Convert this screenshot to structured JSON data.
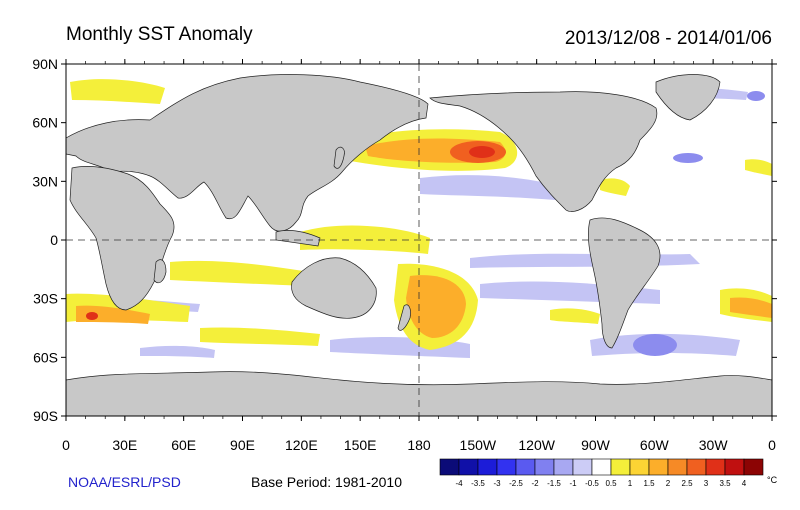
{
  "header": {
    "title": "Monthly SST Anomaly",
    "date_range": "2013/12/08 - 2014/01/06"
  },
  "map": {
    "lat_labels": [
      "90N",
      "60N",
      "30N",
      "0",
      "30S",
      "60S",
      "90S"
    ],
    "lon_labels": [
      "0",
      "30E",
      "60E",
      "90E",
      "120E",
      "150E",
      "180",
      "150W",
      "120W",
      "90W",
      "60W",
      "30W",
      "0"
    ],
    "colors": {
      "land": "#c8c8c8",
      "ocean": "#ffffff"
    }
  },
  "footer": {
    "credit": "NOAA/ESRL/PSD",
    "base_period": "Base Period: 1981-2010"
  },
  "legend": {
    "unit": "°C",
    "labels": [
      "-4",
      "-3.5",
      "-3",
      "-2.5",
      "-2",
      "-1.5",
      "-1",
      "-0.5",
      "0.5",
      "1",
      "1.5",
      "2",
      "2.5",
      "3",
      "3.5",
      "4"
    ],
    "colors": [
      "#0b0b78",
      "#1010a8",
      "#1c1cd8",
      "#3232f0",
      "#5a5af0",
      "#8080f0",
      "#a8a8f2",
      "#ccccf6",
      "#ffffff",
      "#f4ef3a",
      "#fcd434",
      "#fcae2a",
      "#f68a26",
      "#f06020",
      "#e03018",
      "#c01010",
      "#8c0404"
    ]
  }
}
